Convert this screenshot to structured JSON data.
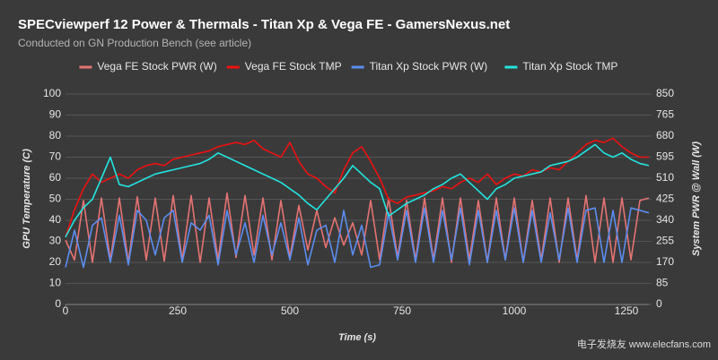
{
  "chart_data": {
    "type": "line",
    "title": "SPECviewperf 12 Power & Thermals - Titan Xp & Vega FE - GamersNexus.net",
    "subtitle": "Conducted on GN Production Bench (see article)",
    "x_label": "Time (s)",
    "y_label": "GPU Temperature (C)",
    "y2_label": "System PWR @ Wall (W)",
    "watermark": "电子发烧友 www.elecfans.com",
    "x": [
      0,
      20,
      40,
      60,
      80,
      100,
      120,
      140,
      160,
      180,
      200,
      220,
      240,
      260,
      280,
      300,
      320,
      340,
      360,
      380,
      400,
      420,
      440,
      460,
      480,
      500,
      520,
      540,
      560,
      580,
      600,
      620,
      640,
      660,
      680,
      700,
      720,
      740,
      760,
      780,
      800,
      820,
      840,
      860,
      880,
      900,
      920,
      940,
      960,
      980,
      1000,
      1020,
      1040,
      1060,
      1080,
      1100,
      1120,
      1140,
      1160,
      1180,
      1200,
      1220,
      1240,
      1260,
      1280,
      1300
    ],
    "xlim": [
      0,
      1300
    ],
    "xticks": [
      0,
      250,
      500,
      750,
      1000,
      1250
    ],
    "ylim": [
      0,
      100
    ],
    "yticks": [
      0,
      10,
      20,
      30,
      40,
      50,
      60,
      70,
      80,
      90,
      100
    ],
    "y2lim": [
      0,
      850
    ],
    "y2ticks": [
      0,
      85,
      170,
      255,
      340,
      425,
      510,
      595,
      680,
      765,
      850
    ],
    "grid": true,
    "legend": "top",
    "series": [
      {
        "name": "Vega FE Stock PWR (W)",
        "color": "#e57373",
        "axis": "y2",
        "values": [
          260,
          180,
          420,
          170,
          430,
          180,
          430,
          170,
          435,
          180,
          430,
          175,
          440,
          180,
          440,
          170,
          430,
          180,
          450,
          190,
          440,
          200,
          430,
          180,
          420,
          190,
          400,
          220,
          380,
          230,
          350,
          240,
          330,
          200,
          420,
          180,
          430,
          190,
          420,
          180,
          430,
          180,
          430,
          170,
          430,
          180,
          420,
          170,
          430,
          180,
          430,
          170,
          420,
          180,
          430,
          170,
          430,
          180,
          440,
          170,
          430,
          170,
          430,
          180,
          420,
          430
        ]
      },
      {
        "name": "Vega FE Stock TMP",
        "color": "#ee1111",
        "values": [
          32,
          45,
          55,
          62,
          58,
          60,
          62,
          60,
          64,
          66,
          67,
          66,
          69,
          70,
          71,
          72,
          73,
          75,
          76,
          77,
          76,
          78,
          74,
          72,
          70,
          77,
          68,
          62,
          60,
          56,
          53,
          64,
          72,
          75,
          68,
          60,
          50,
          48,
          51,
          52,
          53,
          54,
          56,
          55,
          58,
          60,
          58,
          62,
          57,
          60,
          62,
          61,
          64,
          63,
          65,
          64,
          68,
          72,
          76,
          78,
          77,
          79,
          75,
          72,
          70,
          70
        ]
      },
      {
        "name": "Titan Xp Stock PWR (W)",
        "color": "#5b8def",
        "axis": "y2",
        "values": [
          150,
          300,
          150,
          320,
          350,
          170,
          360,
          160,
          380,
          340,
          200,
          350,
          380,
          170,
          330,
          300,
          360,
          160,
          380,
          200,
          330,
          170,
          360,
          200,
          330,
          180,
          350,
          160,
          300,
          320,
          170,
          380,
          200,
          320,
          150,
          160,
          370,
          180,
          380,
          170,
          390,
          170,
          380,
          180,
          390,
          160,
          380,
          170,
          380,
          180,
          390,
          170,
          380,
          170,
          370,
          180,
          390,
          170,
          380,
          390,
          170,
          380,
          170,
          390,
          380,
          370
        ]
      },
      {
        "name": "Titan Xp Stock TMP",
        "color": "#22e5e0",
        "values": [
          32,
          40,
          46,
          50,
          60,
          70,
          57,
          56,
          58,
          60,
          62,
          63,
          64,
          65,
          66,
          67,
          69,
          72,
          70,
          68,
          66,
          64,
          62,
          60,
          58,
          55,
          52,
          48,
          45,
          50,
          55,
          60,
          66,
          62,
          58,
          55,
          42,
          45,
          48,
          50,
          52,
          55,
          57,
          60,
          62,
          58,
          54,
          50,
          55,
          57,
          60,
          61,
          62,
          63,
          66,
          67,
          68,
          70,
          73,
          76,
          72,
          70,
          72,
          69,
          67,
          66
        ]
      }
    ]
  }
}
